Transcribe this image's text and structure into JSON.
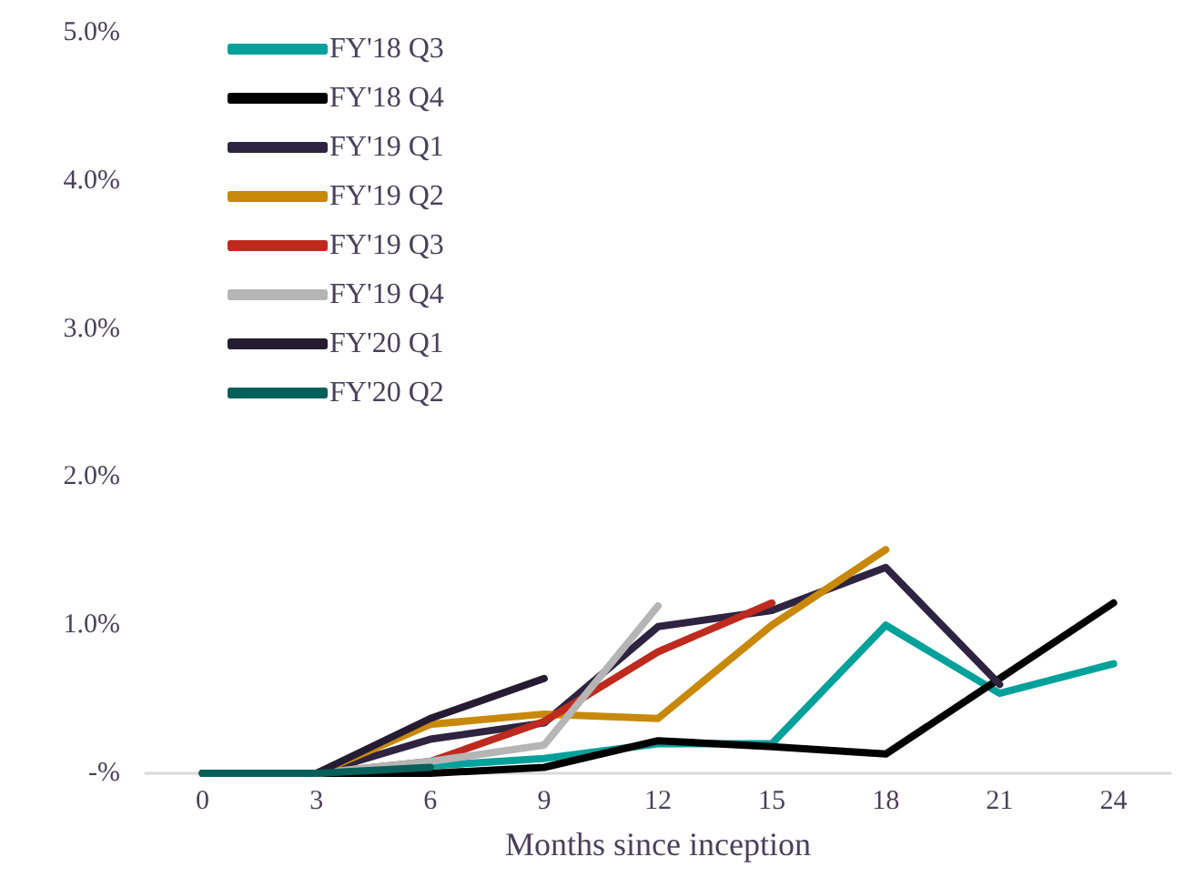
{
  "chart_data": {
    "type": "line",
    "xlabel": "Months since inception",
    "categories": [
      "0",
      "3",
      "6",
      "9",
      "12",
      "15",
      "18",
      "21",
      "24"
    ],
    "series": [
      {
        "name": "FY'18 Q3",
        "color": "#00a19a",
        "values": [
          0,
          0,
          0.05,
          0.1,
          0.2,
          0.2,
          1.0,
          0.54,
          0.74
        ]
      },
      {
        "name": "FY'18 Q4",
        "color": "#000000",
        "values": [
          0,
          0,
          0,
          0.04,
          0.22,
          0.18,
          0.13,
          0.64,
          1.15
        ]
      },
      {
        "name": "FY'19 Q1",
        "color": "#2e2340",
        "values": [
          0,
          0,
          0.23,
          0.34,
          0.99,
          1.1,
          1.39,
          0.6,
          null
        ]
      },
      {
        "name": "FY'19 Q2",
        "color": "#c8890a",
        "values": [
          0,
          0,
          0.33,
          0.4,
          0.37,
          1.0,
          1.51,
          null,
          null
        ]
      },
      {
        "name": "FY'19 Q3",
        "color": "#be2a1e",
        "values": [
          0,
          0,
          0.08,
          0.35,
          0.82,
          1.15,
          null,
          null,
          null
        ]
      },
      {
        "name": "FY'19 Q4",
        "color": "#b5b5b5",
        "values": [
          0,
          0,
          0.08,
          0.19,
          1.13,
          null,
          null,
          null,
          null
        ]
      },
      {
        "name": "FY'20 Q1",
        "color": "#251b33",
        "values": [
          0,
          0,
          0.37,
          0.64,
          null,
          null,
          null,
          null,
          null
        ]
      },
      {
        "name": "FY'20 Q2",
        "color": "#05605a",
        "values": [
          0,
          0,
          0.04,
          null,
          null,
          null,
          null,
          null,
          null
        ]
      }
    ],
    "ylim": [
      0,
      5
    ],
    "yticks": [
      {
        "value": 0,
        "label": "-%"
      },
      {
        "value": 1,
        "label": "1.0%"
      },
      {
        "value": 2,
        "label": "2.0%"
      },
      {
        "value": 3,
        "label": "3.0%"
      },
      {
        "value": 4,
        "label": "4.0%"
      },
      {
        "value": 5,
        "label": "5.0%"
      }
    ],
    "grid": false,
    "legend": "top left",
    "marker": "none",
    "line_style": "solid"
  }
}
